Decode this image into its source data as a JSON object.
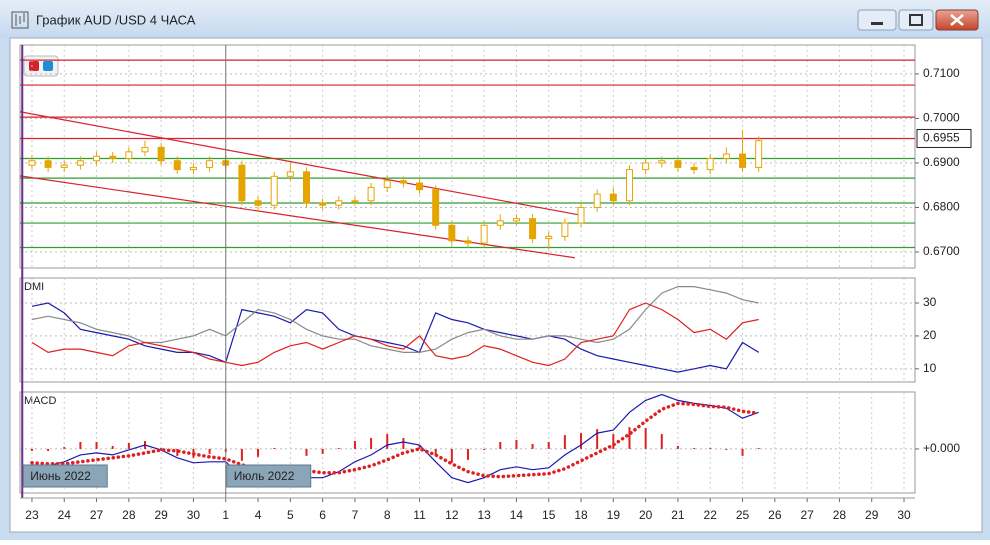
{
  "window": {
    "title": "График AUD /USD  4 ЧАСА"
  },
  "chart_data": [
    {
      "type": "candlestick",
      "color": "#e6a400",
      "grid": true,
      "x": [
        0,
        0.5,
        1,
        1.5,
        2,
        2.5,
        3,
        3.5,
        4,
        4.5,
        5,
        5.5,
        6,
        6.5,
        7,
        7.5,
        8,
        8.5,
        9,
        9.5,
        10,
        10.5,
        11,
        11.5,
        12,
        12.5,
        13,
        13.5,
        14,
        14.5,
        15,
        15.5,
        16,
        16.5,
        17,
        17.5,
        18,
        18.5,
        19,
        19.5,
        20,
        20.5,
        21,
        21.5,
        22,
        22.5
      ],
      "open": [
        0.6895,
        0.6905,
        0.689,
        0.6895,
        0.6905,
        0.6915,
        0.691,
        0.6925,
        0.6935,
        0.6905,
        0.6885,
        0.689,
        0.6905,
        0.6895,
        0.6815,
        0.6805,
        0.687,
        0.688,
        0.681,
        0.6805,
        0.6815,
        0.6815,
        0.6845,
        0.686,
        0.6855,
        0.684,
        0.676,
        0.6725,
        0.672,
        0.676,
        0.677,
        0.6775,
        0.673,
        0.6735,
        0.6765,
        0.68,
        0.683,
        0.6815,
        0.6885,
        0.69,
        0.6905,
        0.689,
        0.6885,
        0.691,
        0.692,
        0.689
      ],
      "high": [
        0.6918,
        0.6915,
        0.6905,
        0.6915,
        0.6925,
        0.6925,
        0.6935,
        0.695,
        0.6945,
        0.6915,
        0.69,
        0.6915,
        0.6918,
        0.6905,
        0.6825,
        0.688,
        0.69,
        0.689,
        0.682,
        0.6825,
        0.6825,
        0.6855,
        0.6872,
        0.687,
        0.6865,
        0.685,
        0.677,
        0.6735,
        0.677,
        0.6785,
        0.6785,
        0.6785,
        0.6745,
        0.6775,
        0.681,
        0.684,
        0.6845,
        0.6895,
        0.691,
        0.6915,
        0.6915,
        0.69,
        0.692,
        0.6935,
        0.6975,
        0.696
      ],
      "low": [
        0.6885,
        0.688,
        0.688,
        0.6885,
        0.6895,
        0.69,
        0.69,
        0.6915,
        0.6895,
        0.6875,
        0.6875,
        0.688,
        0.6885,
        0.6805,
        0.679,
        0.6795,
        0.686,
        0.68,
        0.6795,
        0.6795,
        0.6805,
        0.6805,
        0.6835,
        0.6845,
        0.683,
        0.675,
        0.6715,
        0.671,
        0.671,
        0.675,
        0.676,
        0.672,
        0.6705,
        0.6725,
        0.6755,
        0.679,
        0.6805,
        0.6805,
        0.6875,
        0.689,
        0.688,
        0.6875,
        0.6875,
        0.69,
        0.688,
        0.688
      ],
      "close": [
        0.6905,
        0.689,
        0.6895,
        0.6905,
        0.6915,
        0.691,
        0.6925,
        0.6935,
        0.6905,
        0.6885,
        0.689,
        0.6905,
        0.6895,
        0.6815,
        0.6805,
        0.687,
        0.688,
        0.681,
        0.6805,
        0.6815,
        0.6815,
        0.6845,
        0.686,
        0.6855,
        0.684,
        0.676,
        0.6725,
        0.672,
        0.676,
        0.677,
        0.6775,
        0.673,
        0.6735,
        0.6765,
        0.68,
        0.683,
        0.6815,
        0.6885,
        0.69,
        0.6905,
        0.689,
        0.6885,
        0.691,
        0.692,
        0.689,
        0.695
      ],
      "xlim": [
        -0.37,
        27.34
      ],
      "ylim": [
        0.6664,
        0.7165
      ],
      "yticks": [
        {
          "value": 0.67,
          "label": "0.6700"
        },
        {
          "value": 0.68,
          "label": "0.6800"
        },
        {
          "value": 0.69,
          "label": "0.6900"
        },
        {
          "value": 0.7,
          "label": "0.7000"
        },
        {
          "value": 0.71,
          "label": "0.7100"
        }
      ],
      "levels": [
        {
          "value": 0.7131,
          "color": "#d9222c"
        },
        {
          "value": 0.7075,
          "color": "#d9222c"
        },
        {
          "value": 0.7003,
          "color": "#d9222c"
        },
        {
          "value": 0.6955,
          "color": "#d9222c",
          "label": "0.6955"
        },
        {
          "value": 0.691,
          "color": "#2f9e2f"
        },
        {
          "value": 0.6866,
          "color": "#2f9e2f"
        },
        {
          "value": 0.681,
          "color": "#2f9e2f"
        },
        {
          "value": 0.6765,
          "color": "#2f9e2f"
        },
        {
          "value": 0.671,
          "color": "#2f9e2f"
        }
      ],
      "trendlines": [
        {
          "from": [
            -0.37,
            0.7015
          ],
          "to": [
            16.97,
            0.6783
          ],
          "color": "#d9222c"
        },
        {
          "from": [
            -0.37,
            0.6871
          ],
          "to": [
            16.81,
            0.6687
          ],
          "color": "#d9222c"
        }
      ]
    },
    {
      "type": "line",
      "title": "DMI",
      "grid": true,
      "x": [
        0,
        0.5,
        1,
        1.5,
        2,
        2.5,
        3,
        3.5,
        4,
        4.5,
        5,
        5.5,
        6,
        6.5,
        7,
        7.5,
        8,
        8.5,
        9,
        9.5,
        10,
        10.5,
        11,
        11.5,
        12,
        12.5,
        13,
        13.5,
        14,
        14.5,
        15,
        15.5,
        16,
        16.5,
        17,
        17.5,
        18,
        18.5,
        19,
        19.5,
        20,
        20.5,
        21,
        21.5,
        22,
        22.5
      ],
      "xlim": [
        -0.37,
        27.34
      ],
      "ylim": [
        6,
        37.6
      ],
      "yticks": [
        10,
        20,
        30
      ],
      "series": [
        {
          "color": "#1a1ab0",
          "values": [
            29,
            30,
            27,
            22,
            21,
            20,
            19,
            17,
            16,
            15,
            15,
            14,
            12,
            28,
            27,
            26,
            24,
            28,
            27,
            22,
            20,
            19,
            18,
            17,
            15,
            27,
            25,
            24,
            22,
            21,
            20,
            19,
            20,
            19,
            16,
            14,
            13,
            12,
            11,
            10,
            9,
            10,
            11,
            10,
            18,
            15
          ]
        },
        {
          "color": "#8a8a8a",
          "values": [
            25,
            26,
            25,
            24,
            22,
            21,
            20,
            18,
            18,
            19,
            20,
            22,
            20,
            24,
            28,
            27,
            25,
            22,
            20,
            19,
            19,
            17,
            16,
            15,
            15,
            16,
            19,
            21,
            22,
            20,
            19,
            19,
            20,
            20,
            19,
            18,
            19,
            22,
            28,
            33,
            35,
            35,
            34,
            33,
            31,
            30
          ]
        },
        {
          "color": "#e01f1f",
          "values": [
            18,
            15,
            16,
            16,
            15,
            14,
            17,
            18,
            17,
            16,
            15,
            13,
            12,
            11,
            12,
            15,
            17,
            18,
            16,
            18,
            20,
            19,
            17,
            16,
            20,
            14,
            13,
            14,
            17,
            16,
            14,
            12,
            11,
            13,
            18,
            19,
            20,
            28,
            30,
            28,
            25,
            21,
            22,
            19,
            24,
            25
          ]
        }
      ]
    },
    {
      "type": "macd",
      "title": "MACD",
      "grid": true,
      "x": [
        0,
        0.5,
        1,
        1.5,
        2,
        2.5,
        3,
        3.5,
        4,
        4.5,
        5,
        5.5,
        6,
        6.5,
        7,
        7.5,
        8,
        8.5,
        9,
        9.5,
        10,
        10.5,
        11,
        11.5,
        12,
        12.5,
        13,
        13.5,
        14,
        14.5,
        15,
        15.5,
        16,
        16.5,
        17,
        17.5,
        18,
        18.5,
        19,
        19.5,
        20,
        20.5,
        21,
        21.5,
        22,
        22.5
      ],
      "xlim": [
        -0.37,
        27.34
      ],
      "ylim": [
        -0.00445,
        0.00575
      ],
      "yticks": [
        {
          "value": 0,
          "label": "+0.000"
        }
      ],
      "categories": [
        "23",
        "24",
        "27",
        "28",
        "29",
        "30",
        "1",
        "4",
        "5",
        "6",
        "7",
        "8",
        "11",
        "12",
        "13",
        "14",
        "15",
        "18",
        "19",
        "20",
        "21",
        "22",
        "25",
        "26",
        "27",
        "28",
        "29",
        "30"
      ],
      "period_labels": [
        {
          "x": -0.3,
          "label": "Июнь 2022"
        },
        {
          "x": 6,
          "label": "Июль 2022"
        }
      ],
      "series": [
        {
          "color": "#1a1ab0",
          "values": [
            -0.0016,
            -0.0017,
            -0.0013,
            -0.0006,
            -0.0004,
            -0.0006,
            -0.0001,
            0.0004,
            -0.0001,
            -0.0009,
            -0.0014,
            -0.0013,
            -0.0013,
            -0.0028,
            -0.0029,
            -0.0021,
            -0.0021,
            -0.0029,
            -0.0029,
            -0.0023,
            -0.0013,
            -0.0006,
            0.0004,
            0.0007,
            0.0004,
            -0.0013,
            -0.0029,
            -0.0034,
            -0.0029,
            -0.0021,
            -0.0018,
            -0.0021,
            -0.0019,
            -0.0006,
            0.0004,
            0.0016,
            0.0019,
            0.0037,
            0.0049,
            0.0055,
            0.0049,
            0.0046,
            0.0044,
            0.0041,
            0.0031,
            0.0037
          ]
        },
        {
          "color": "#e01f1f",
          "style": "dotted",
          "values": [
            -0.0014,
            -0.0015,
            -0.0015,
            -0.0013,
            -0.0011,
            -0.0009,
            -0.0007,
            -0.0004,
            -0.0001,
            -0.0002,
            -0.0005,
            -0.0008,
            -0.001,
            -0.0016,
            -0.0021,
            -0.0022,
            -0.0021,
            -0.0022,
            -0.0024,
            -0.0024,
            -0.0021,
            -0.0017,
            -0.0011,
            -0.0004,
            0.0,
            -0.0006,
            -0.0015,
            -0.0023,
            -0.0027,
            -0.0028,
            -0.0027,
            -0.0026,
            -0.0025,
            -0.002,
            -0.0012,
            -0.0004,
            0.0004,
            0.0015,
            0.0028,
            0.004,
            0.0046,
            0.0045,
            0.0043,
            0.0042,
            0.0038,
            0.0036
          ]
        }
      ],
      "histogram": {
        "color": "#e01f1f",
        "values": [
          -0.0002,
          -0.0002,
          0.0002,
          0.0007,
          0.0007,
          0.0003,
          0.0006,
          0.0008,
          0.0001,
          -0.0007,
          -0.0009,
          -0.0005,
          -0.0003,
          -0.0012,
          -0.0008,
          0.0001,
          0.0,
          -0.0007,
          -0.0005,
          0.0001,
          0.0008,
          0.0011,
          0.0015,
          0.0011,
          0.0004,
          -0.0007,
          -0.0014,
          -0.0011,
          -0.0001,
          0.0007,
          0.0009,
          0.0005,
          0.0007,
          0.0014,
          0.0016,
          0.002,
          0.0015,
          0.0022,
          0.0021,
          0.0015,
          0.0003,
          0.0001,
          0.0001,
          -0.0001,
          -0.0007,
          0.0001
        ]
      }
    }
  ]
}
